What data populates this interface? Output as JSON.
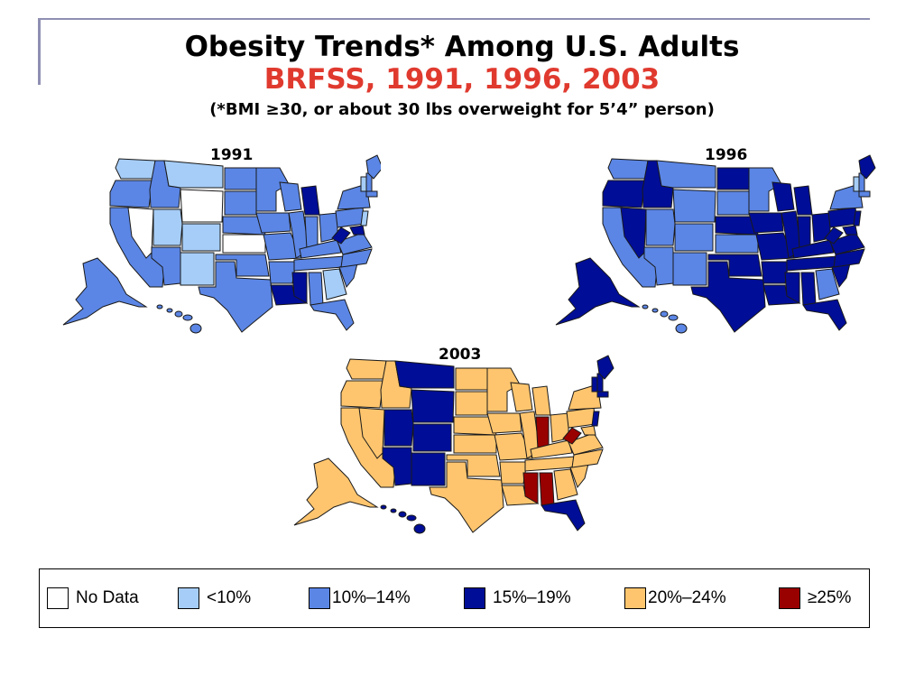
{
  "title": {
    "main": "Obesity Trends* Among U.S. Adults",
    "sub": "BRFSS, 1991, 1996, 2003",
    "note": "(*BMI ≥30, or about 30 lbs overweight for 5’4” person)"
  },
  "colors": {
    "no_data": "#ffffff",
    "lt10": "#a6cdf7",
    "10_14": "#5b86e5",
    "15_19": "#000d96",
    "20_24": "#fec56e",
    "ge25": "#990000",
    "title_accent": "#e03a2f"
  },
  "maps": [
    {
      "year": "1991"
    },
    {
      "year": "1996"
    },
    {
      "year": "2003"
    }
  ],
  "legend": [
    {
      "label": "No Data",
      "color_key": "no_data"
    },
    {
      "label": "<10%",
      "color_key": "lt10"
    },
    {
      "label": "10%–14%",
      "color_key": "10_14"
    },
    {
      "label": "15%–19%",
      "color_key": "15_19"
    },
    {
      "label": "20%–24%",
      "color_key": "20_24"
    },
    {
      "label": "≥25%",
      "color_key": "ge25"
    }
  ]
}
